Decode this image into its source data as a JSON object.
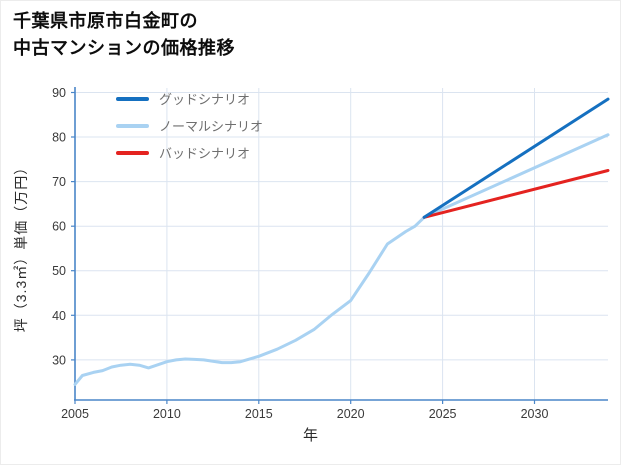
{
  "title": {
    "line1": "千葉県市原市白金町の",
    "line2": "中古マンションの価格推移"
  },
  "chart_data": {
    "type": "line",
    "title": "千葉県市原市白金町の中古マンションの価格推移",
    "xlabel": "年",
    "ylabel": "坪（3.3㎡）単価（万円）",
    "xlim": [
      2005,
      2034
    ],
    "ylim": [
      21,
      91
    ],
    "xticks": [
      2005,
      2010,
      2015,
      2020,
      2025,
      2030
    ],
    "yticks": [
      30,
      40,
      50,
      60,
      70,
      80,
      90
    ],
    "grid": true,
    "legend_position": "upper-left-inside",
    "colors": {
      "axis": "#4a86c8",
      "grid": "#dbe4f0"
    },
    "draw_order": [
      1,
      2,
      0
    ],
    "series": [
      {
        "id": "good",
        "name": "グッドシナリオ",
        "color": "#1570c0",
        "x": [
          2024,
          2034
        ],
        "values": [
          62,
          88.5
        ]
      },
      {
        "id": "normal",
        "name": "ノーマルシナリオ",
        "color": "#a9d2f2",
        "x": [
          2005,
          2005.4,
          2006,
          2006.5,
          2007,
          2007.5,
          2008,
          2008.5,
          2009,
          2009.5,
          2010,
          2010.5,
          2011,
          2011.5,
          2012,
          2013,
          2013.5,
          2014,
          2015,
          2016,
          2017,
          2018,
          2019,
          2020,
          2021,
          2022,
          2023,
          2023.5,
          2024,
          2034
        ],
        "values": [
          24.5,
          26.5,
          27.2,
          27.6,
          28.4,
          28.8,
          29.0,
          28.8,
          28.2,
          28.9,
          29.6,
          30.0,
          30.2,
          30.1,
          30.0,
          29.4,
          29.4,
          29.6,
          30.8,
          32.4,
          34.4,
          36.8,
          40.2,
          43.3,
          49.5,
          56.0,
          58.8,
          60.0,
          62.0,
          80.5
        ]
      },
      {
        "id": "bad",
        "name": "バッドシナリオ",
        "color": "#e42320",
        "x": [
          2024,
          2034
        ],
        "values": [
          62,
          72.5
        ]
      }
    ]
  }
}
